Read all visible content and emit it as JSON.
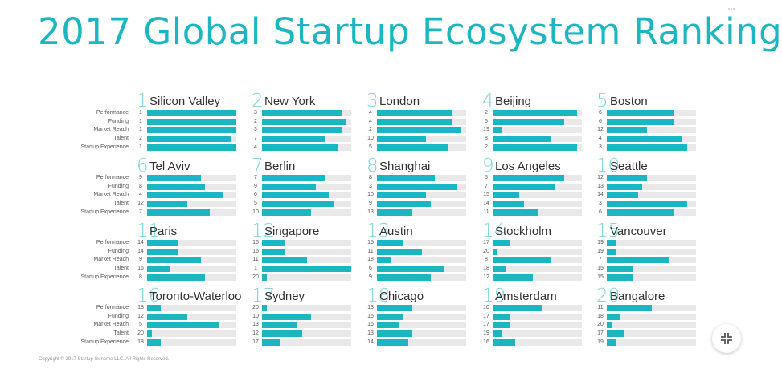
{
  "title": "2017 Global Startup Ecosystem Ranking",
  "footer": "Copyright © 2017 Startup Genome LLC. All Rights Reserved.",
  "colors": {
    "accent": "#1ab7c3",
    "rank": "#7fd4dc",
    "track": "#e9e9e9"
  },
  "icons": {
    "exit_fullscreen": "exit-fullscreen-icon"
  },
  "chart_data": {
    "type": "bar",
    "metrics": [
      "Performance",
      "Funding",
      "Market Reach",
      "Talent",
      "Startup Experience"
    ],
    "max_rank": 20,
    "ecosystems": [
      {
        "rank": "1",
        "city": "Silicon Valley",
        "values": [
          1,
          1,
          1,
          2,
          1
        ]
      },
      {
        "rank": "2",
        "city": "New York",
        "values": [
          3,
          2,
          3,
          7,
          4
        ]
      },
      {
        "rank": "3",
        "city": "London",
        "values": [
          4,
          4,
          2,
          10,
          5
        ]
      },
      {
        "rank": "4",
        "city": "Beijing",
        "values": [
          2,
          5,
          19,
          8,
          2
        ]
      },
      {
        "rank": "5",
        "city": "Boston",
        "values": [
          6,
          6,
          12,
          4,
          3
        ]
      },
      {
        "rank": "6",
        "city": "Tel Aviv",
        "values": [
          9,
          8,
          4,
          12,
          7
        ]
      },
      {
        "rank": "7",
        "city": "Berlin",
        "values": [
          7,
          9,
          6,
          5,
          10
        ]
      },
      {
        "rank": "8",
        "city": "Shanghai",
        "values": [
          8,
          3,
          10,
          9,
          13
        ]
      },
      {
        "rank": "9",
        "city": "Los Angeles",
        "values": [
          5,
          7,
          15,
          14,
          11
        ]
      },
      {
        "rank": "10",
        "city": "Seattle",
        "values": [
          12,
          13,
          14,
          3,
          6
        ]
      },
      {
        "rank": "11",
        "city": "Paris",
        "values": [
          14,
          14,
          9,
          16,
          8
        ]
      },
      {
        "rank": "12",
        "city": "Singapore",
        "values": [
          16,
          16,
          11,
          1,
          20
        ]
      },
      {
        "rank": "13",
        "city": "Austin",
        "values": [
          15,
          11,
          18,
          6,
          9
        ]
      },
      {
        "rank": "14",
        "city": "Stockholm",
        "values": [
          17,
          20,
          8,
          18,
          12
        ]
      },
      {
        "rank": "15",
        "city": "Vancouver",
        "values": [
          19,
          19,
          7,
          15,
          15
        ]
      },
      {
        "rank": "16",
        "city": "Toronto-Waterloo",
        "values": [
          18,
          12,
          5,
          20,
          18
        ]
      },
      {
        "rank": "17",
        "city": "Sydney",
        "values": [
          20,
          10,
          13,
          12,
          17
        ]
      },
      {
        "rank": "18",
        "city": "Chicago",
        "values": [
          13,
          15,
          16,
          13,
          14
        ]
      },
      {
        "rank": "19",
        "city": "Amsterdam",
        "values": [
          10,
          17,
          17,
          19,
          16
        ]
      },
      {
        "rank": "20",
        "city": "Bangalore",
        "values": [
          11,
          18,
          20,
          17,
          19
        ]
      }
    ]
  }
}
